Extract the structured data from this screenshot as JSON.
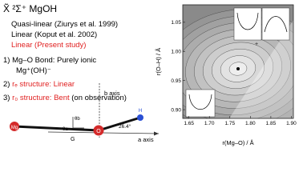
{
  "title": "X̃ ²Σ⁺ MgOH",
  "references": [
    "Quasi-linear (Ziurys et al. 1999)",
    "Linear (Koput et al. 2002)",
    "Linear (Present study)"
  ],
  "points": [
    {
      "lines": [
        [
          "1) Mg–O Bond: Purely ionic"
        ],
        [
          "Mg⁺(OH)⁻"
        ]
      ]
    },
    {
      "number": "2)",
      "highlight": "rₑ structure: Linear"
    },
    {
      "number": "3)",
      "highlight": "r₀ structure: Bent",
      "rest": "(on observation)"
    }
  ],
  "molecule": {
    "atoms": [
      "Mg",
      "O",
      "H"
    ],
    "b_axis": "b axis",
    "a_axis": "a axis",
    "center": "G",
    "angle": "26.4°",
    "theta_a": "θa",
    "theta_b": "θb"
  },
  "plot": {
    "xlabel": "r(Mg–O) / Å",
    "ylabel": "r(O–H) / Å",
    "xlim": [
      1.635,
      1.905
    ],
    "ylim": [
      0.885,
      1.08
    ],
    "xticks": [
      1.65,
      {
        "value": 1.7,
        "label": "1.70"
      },
      1.75,
      {
        "value": 1.8,
        "label": "1.80"
      },
      1.85,
      {
        "value": 1.9,
        "label": "1.90"
      }
    ],
    "yticks": [
      {
        "value": 0.9,
        "label": "0.90"
      },
      0.95,
      {
        "value": 1,
        "label": "1.00"
      },
      1.05
    ]
  }
}
